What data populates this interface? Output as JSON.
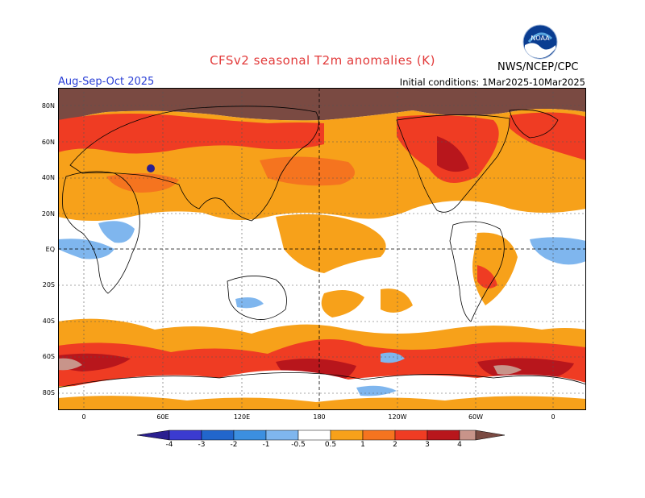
{
  "header": {
    "title": "CFSv2 seasonal T2m anomalies (K)",
    "season": "Aug-Sep-Oct 2025",
    "init": "Initial conditions: 1Mar2025-10Mar2025",
    "org": "NWS/NCEP/CPC",
    "logo_text": "NOAA"
  },
  "axes": {
    "lat_labels": [
      "80N",
      "60N",
      "40N",
      "20N",
      "EQ",
      "20S",
      "40S",
      "60S",
      "80S"
    ],
    "lon_labels": [
      "0",
      "60E",
      "120E",
      "180",
      "120W",
      "60W",
      "0"
    ]
  },
  "colorbar": {
    "labels": [
      "-4",
      "-3",
      "-2",
      "-1",
      "-0.5",
      "0.5",
      "1",
      "2",
      "3",
      "4"
    ],
    "colors": {
      "cold": [
        "#2a1f90",
        "#3b3bd0",
        "#2266cc",
        "#3c8fe0",
        "#7fb6ee"
      ],
      "neutral": "#ffffff",
      "warm": [
        "#f7a11a",
        "#f5741f",
        "#ef3c23",
        "#b8161c",
        "#c8948a",
        "#7a4a42"
      ]
    }
  }
}
